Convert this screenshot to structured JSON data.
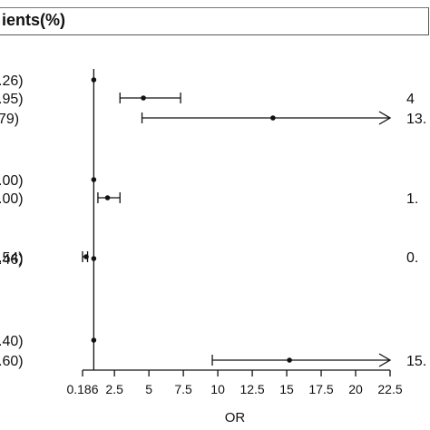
{
  "header": {
    "title": "ients(%)"
  },
  "chart_data": {
    "type": "forest",
    "xlabel": "OR",
    "xlim": [
      0.186,
      22.5
    ],
    "reference_line": 1,
    "xticks": [
      {
        "value": 0.186,
        "label": "0.186"
      },
      {
        "value": 2.5,
        "label": "2.5"
      },
      {
        "value": 5,
        "label": "5"
      },
      {
        "value": 7.5,
        "label": "7.5"
      },
      {
        "value": 10,
        "label": "10"
      },
      {
        "value": 12.5,
        "label": "12.5"
      },
      {
        "value": 15,
        "label": "15"
      },
      {
        "value": 17.5,
        "label": "17.5"
      },
      {
        "value": 20,
        "label": "20"
      },
      {
        "value": 22.5,
        "label": "22.5"
      }
    ],
    "rows": [
      {
        "left": ".26)",
        "right": "",
        "or": 1.0,
        "lo": 1.0,
        "hi": 1.0
      },
      {
        "left": ".95)",
        "right": "4",
        "or": 4.6,
        "lo": 2.9,
        "hi": 7.3
      },
      {
        "left": "79)",
        "right": "13.",
        "or": 14.0,
        "lo": 4.5,
        "hi": 22.5,
        "arrow": true
      },
      {
        "left": ".00)",
        "right": "",
        "or": 1.0,
        "lo": 1.0,
        "hi": 1.0
      },
      {
        "left": ".00)",
        "right": "1.",
        "or": 2.0,
        "lo": 1.3,
        "hi": 2.9
      },
      {
        "left": ".46)",
        "right": "",
        "or": 1.0,
        "lo": 1.0,
        "hi": 1.0
      },
      {
        "left": ".54)",
        "right": "0.",
        "or": 0.45,
        "lo": 0.186,
        "hi": 0.55
      },
      {
        "left": ".40)",
        "right": "",
        "or": 1.0,
        "lo": 1.0,
        "hi": 1.0
      },
      {
        "left": ".60)",
        "right": "15.",
        "or": 15.2,
        "lo": 9.6,
        "hi": 22.5,
        "arrow": true
      }
    ]
  }
}
